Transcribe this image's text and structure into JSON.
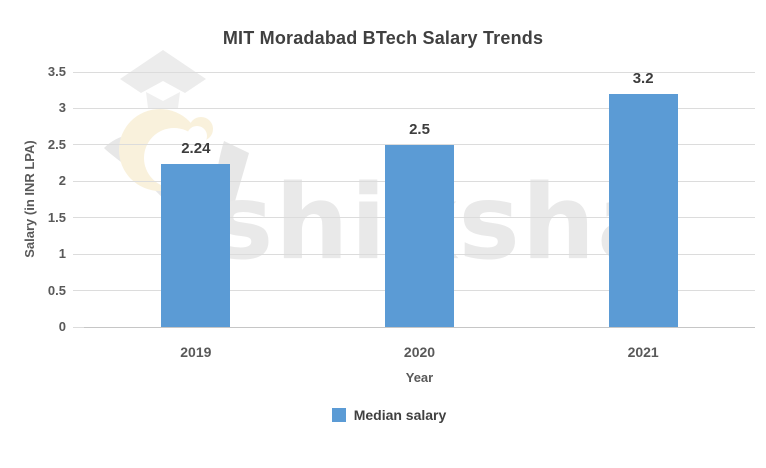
{
  "watermark": {
    "text": "shiksha"
  },
  "chart_data": {
    "type": "bar",
    "title": "MIT Moradabad BTech Salary Trends",
    "categories": [
      "2019",
      "2020",
      "2021"
    ],
    "series": [
      {
        "name": "Median salary",
        "values": [
          2.24,
          2.5,
          3.2
        ]
      }
    ],
    "data_labels": [
      "2.24",
      "2.5",
      "3.2"
    ],
    "xlabel": "Year",
    "ylabel": "Salary (in INR LPA)",
    "ylim": [
      0,
      3.5
    ],
    "yticks": [
      0,
      0.5,
      1,
      1.5,
      2,
      2.5,
      3,
      3.5
    ],
    "ytick_labels": [
      "0",
      "0.5",
      "1",
      "1.5",
      "2",
      "2.5",
      "3",
      "3.5"
    ],
    "grid": true,
    "legend_position": "bottom",
    "colors": {
      "bar": "#5b9bd5",
      "title_text": "#404040",
      "tick_text": "#595959",
      "data_label_text": "#3d3d3d",
      "gridline": "#dcdcdc",
      "axis_line": "#c6c6c6",
      "watermark_gray": "#e9e9e9",
      "watermark_cream": "#f9f1dc"
    }
  }
}
